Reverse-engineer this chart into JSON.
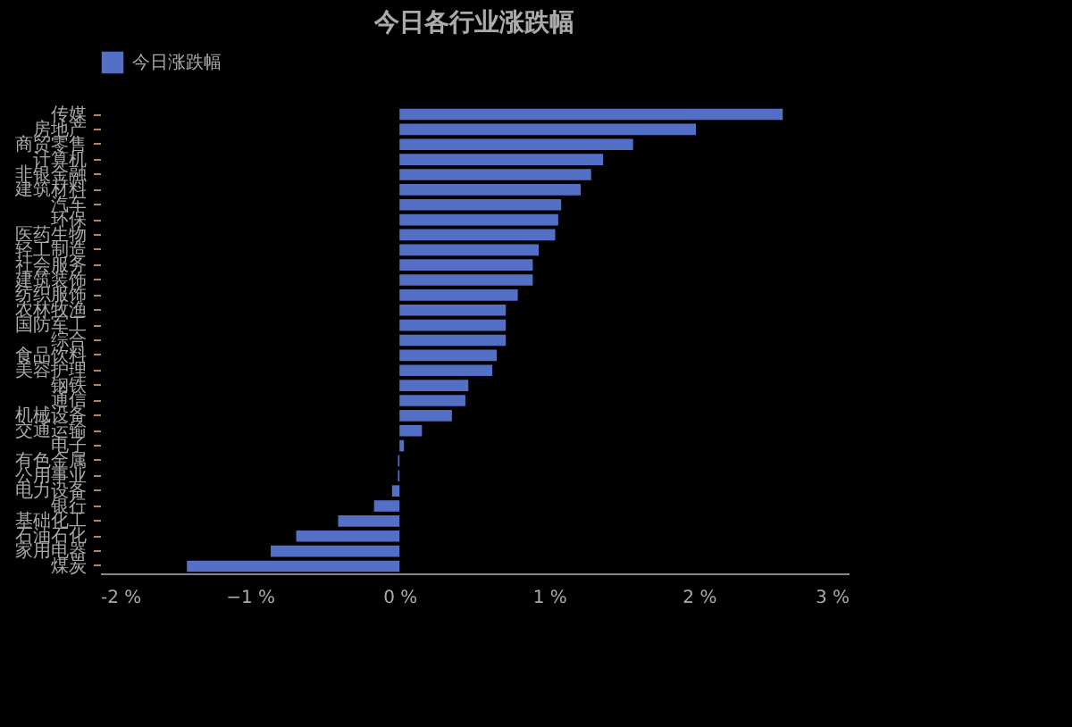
{
  "chart_data": {
    "type": "bar",
    "orientation": "horizontal",
    "title": "今日各行业涨跌幅",
    "categories": [
      "传媒",
      "房地产",
      "商贸零售",
      "计算机",
      "非银金融",
      "建筑材料",
      "汽车",
      "环保",
      "医药生物",
      "轻工制造",
      "社会服务",
      "建筑装饰",
      "纺织服饰",
      "农林牧渔",
      "国防军工",
      "综合",
      "食品饮料",
      "美容护理",
      "钢铁",
      "通信",
      "机械设备",
      "交通运输",
      "电子",
      "有色金属",
      "公用事业",
      "电力设备",
      "银行",
      "基础化工",
      "石油石化",
      "家用电器",
      "煤炭"
    ],
    "series": [
      {
        "name": "今日涨跌幅",
        "color": "#5470c6",
        "values": [
          2.56,
          1.98,
          1.56,
          1.36,
          1.28,
          1.21,
          1.08,
          1.06,
          1.04,
          0.93,
          0.89,
          0.89,
          0.79,
          0.71,
          0.71,
          0.71,
          0.65,
          0.62,
          0.46,
          0.44,
          0.35,
          0.15,
          0.03,
          -0.01,
          -0.01,
          -0.05,
          -0.17,
          -0.41,
          -0.69,
          -0.86,
          -1.42
        ]
      }
    ],
    "xlim": [
      -2,
      3
    ],
    "xticks": [
      {
        "value": -2,
        "label": "-2 %"
      },
      {
        "value": -1,
        "label": "−1 %"
      },
      {
        "value": 0,
        "label": "0 %"
      },
      {
        "value": 1,
        "label": "1 %"
      },
      {
        "value": 2,
        "label": "2 %"
      },
      {
        "value": 3,
        "label": "3 %"
      }
    ],
    "legend": "top",
    "grid": false
  }
}
